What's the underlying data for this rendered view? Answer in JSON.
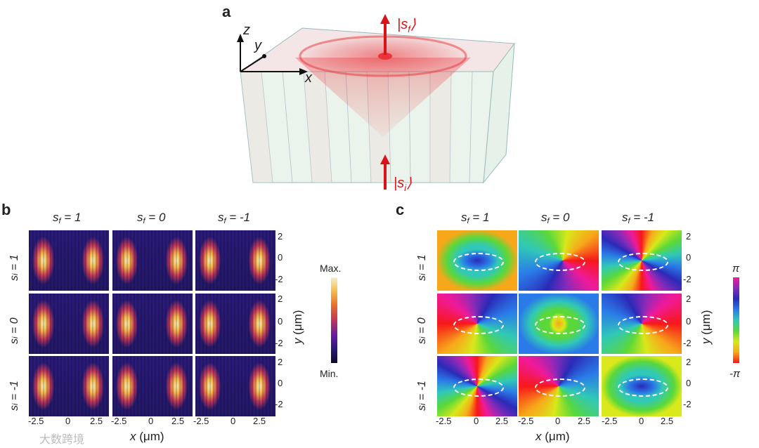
{
  "panels": {
    "a": "a",
    "b": "b",
    "c": "c"
  },
  "panel_a": {
    "axis_z": "z",
    "axis_y": "y",
    "axis_x": "x",
    "state_final": "|s",
    "state_final_sub": "f",
    "state_final_close": "⟩",
    "state_initial": "|s",
    "state_initial_sub": "i",
    "state_initial_close": "⟩",
    "beam_color": "#e8343a"
  },
  "panel_b": {
    "col_headers": [
      "s",
      "s",
      "s"
    ],
    "col_header_subs": [
      "f",
      "f",
      "f"
    ],
    "col_header_values": [
      "= 1",
      "= 0",
      "= -1"
    ],
    "row_headers": [
      "s",
      "s",
      "s"
    ],
    "row_header_subs": [
      "i",
      "i",
      "i"
    ],
    "row_header_values": [
      "= 1",
      "= 0",
      "= -1"
    ],
    "x_ticks": [
      "-2.5",
      "0",
      "2.5",
      "-2.5",
      "0",
      "2.5",
      "-2.5",
      "0",
      "2.5"
    ],
    "xlabel_main": "x",
    "xlabel_unit": "(μm)",
    "y_ticks": [
      "2",
      "0",
      "-2",
      "2",
      "0",
      "-2",
      "2",
      "0",
      "-2"
    ],
    "ylabel_main": "y",
    "ylabel_unit": "(μm)",
    "colorbar_max": "Max.",
    "colorbar_min": "Min.",
    "colormap": [
      "#0c0a2a",
      "#2a1a7a",
      "#6a1fa0",
      "#c0365a",
      "#e86a2c",
      "#f7b84a",
      "#f4f0c8"
    ]
  },
  "panel_c": {
    "col_headers": [
      "s",
      "s",
      "s"
    ],
    "col_header_subs": [
      "f",
      "f",
      "f"
    ],
    "col_header_values": [
      "= 1",
      "= 0",
      "= -1"
    ],
    "row_headers": [
      "s",
      "s",
      "s"
    ],
    "row_header_subs": [
      "i",
      "i",
      "i"
    ],
    "row_header_values": [
      "= 1",
      "= 0",
      "= -1"
    ],
    "x_ticks": [
      "-2.5",
      "0",
      "2.5",
      "-2.5",
      "0",
      "2.5",
      "-2.5",
      "0",
      "2.5"
    ],
    "xlabel_main": "x",
    "xlabel_unit": "(μm)",
    "y_ticks": [
      "2",
      "0",
      "-2",
      "2",
      "0",
      "-2",
      "2",
      "0",
      "-2"
    ],
    "ylabel_main": "y",
    "ylabel_unit": "(μm)",
    "colorbar_max": "π",
    "colorbar_min": "-π",
    "colormap": [
      "#f7181a",
      "#f7a81a",
      "#d8e81a",
      "#5ad83a",
      "#30c8b8",
      "#2a7ae8",
      "#2a2ab8",
      "#8a2ab8",
      "#f01a9a"
    ]
  },
  "watermark": "大数跨境"
}
